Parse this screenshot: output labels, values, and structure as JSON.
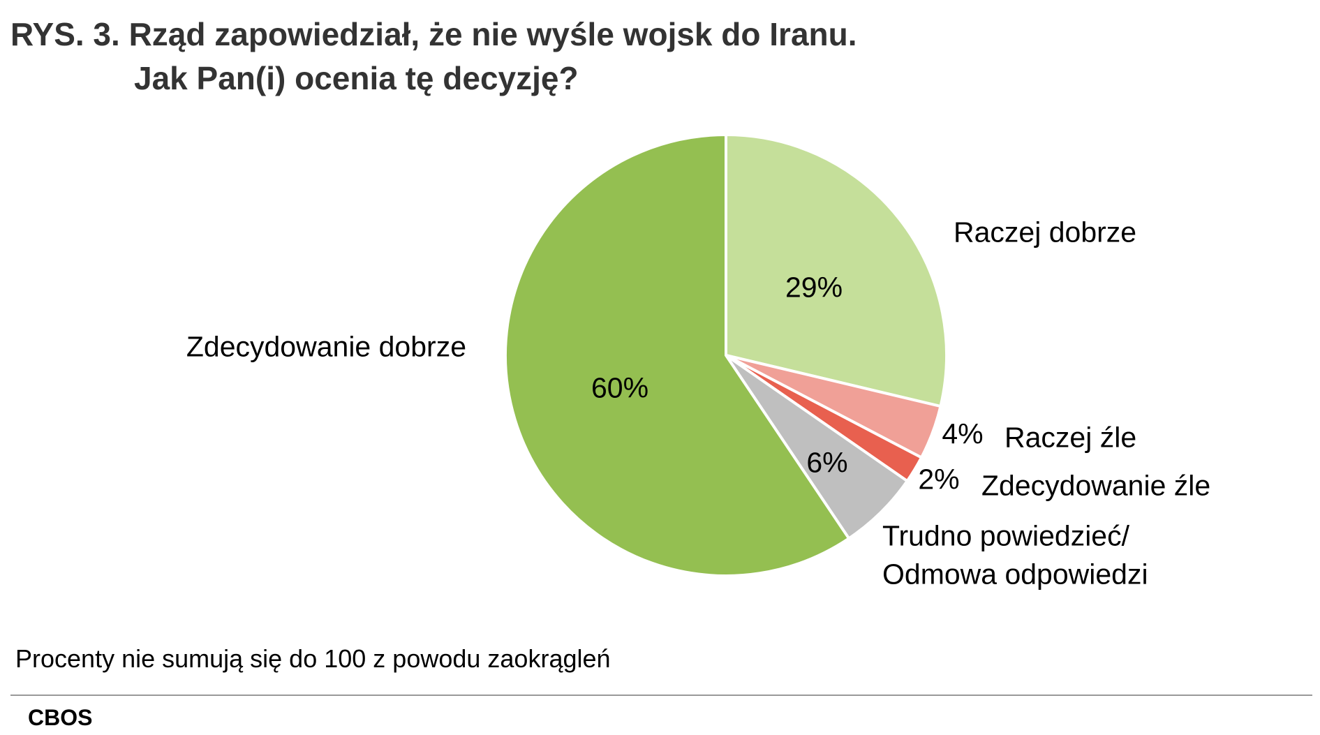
{
  "chart_data": {
    "type": "pie",
    "title": "RYS. 3. Rząd zapowiedział, że nie wyśle wojsk do Iranu.",
    "subtitle": "Jak Pan(i) ocenia tę decyzję?",
    "categories": [
      "Raczej dobrze",
      "Raczej źle",
      "Zdecydowanie źle",
      "Trudno powiedzieć/\nOdmowa odpowiedzi",
      "Zdecydowanie dobrze"
    ],
    "values": [
      29,
      4,
      2,
      6,
      60
    ],
    "value_labels": [
      "29%",
      "4%",
      "2%",
      "6%",
      "60%"
    ],
    "colors": [
      "#c5df9a",
      "#f0a097",
      "#e8604f",
      "#bfbfbf",
      "#94bf51"
    ],
    "note": "Procenty nie sumują się do 100 z powodu zaokrągleń",
    "source": "CBOS"
  }
}
